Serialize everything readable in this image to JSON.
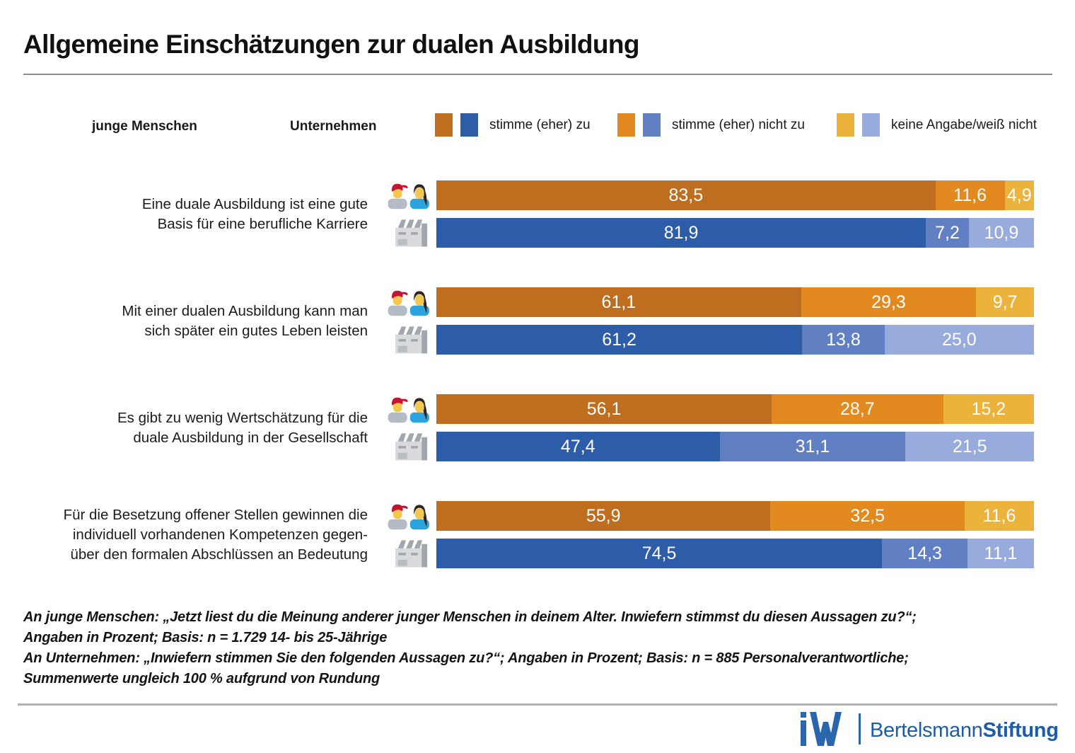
{
  "title": "Allgemeine Einschätzungen zur dualen Ausbildung",
  "legend": {
    "groups": [
      {
        "label": "junge Menschen",
        "icon": "young-people-icon"
      },
      {
        "label": "Unternehmen",
        "icon": "factory-icon"
      }
    ],
    "categories": [
      {
        "label": "stimme (eher) zu"
      },
      {
        "label": "stimme (eher) nicht zu"
      },
      {
        "label": "keine Angabe/weiß nicht"
      }
    ]
  },
  "colors": {
    "young": [
      "#bf6d1e",
      "#e2891f",
      "#ecb33c"
    ],
    "company": [
      "#2d5ca9",
      "#6180c4",
      "#97abdc"
    ],
    "title_rule": "#8f8f8f",
    "bottom_rule": "#b1b1b1",
    "logo_blue": "#2a66ae",
    "brand_blue": "#1d5ca8"
  },
  "chart_data": {
    "type": "bar",
    "orientation": "horizontal-stacked",
    "unit": "percent",
    "value_range": [
      0,
      100
    ],
    "categories": [
      "stimme (eher) zu",
      "stimme (eher) nicht zu",
      "keine Angabe/weiß nicht"
    ],
    "groups": [
      {
        "label": "Eine duale Ausbildung ist eine gute Basis für eine berufliche Karriere",
        "label_lines": [
          "Eine duale Ausbildung ist eine gute",
          "Basis für eine berufliche Karriere"
        ],
        "series": [
          {
            "name": "junge Menschen",
            "values": [
              83.5,
              11.6,
              4.9
            ]
          },
          {
            "name": "Unternehmen",
            "values": [
              81.9,
              7.2,
              10.9
            ]
          }
        ]
      },
      {
        "label": "Mit einer dualen Ausbildung kann man sich später ein gutes Leben leisten",
        "label_lines": [
          "Mit einer dualen Ausbildung kann man",
          "sich später ein gutes Leben leisten"
        ],
        "series": [
          {
            "name": "junge Menschen",
            "values": [
              61.1,
              29.3,
              9.7
            ]
          },
          {
            "name": "Unternehmen",
            "values": [
              61.2,
              13.8,
              25.0
            ]
          }
        ]
      },
      {
        "label": "Es gibt zu wenig Wertschätzung für die duale Ausbildung in der Gesellschaft",
        "label_lines": [
          "Es gibt zu wenig Wertschätzung für die",
          "duale Ausbildung in der Gesellschaft"
        ],
        "series": [
          {
            "name": "junge Menschen",
            "values": [
              56.1,
              28.7,
              15.2
            ]
          },
          {
            "name": "Unternehmen",
            "values": [
              47.4,
              31.1,
              21.5
            ]
          }
        ]
      },
      {
        "label": "Für die Besetzung offener Stellen gewinnen die individuell vorhandenen Kompetenzen gegenüber den formalen Abschlüssen an Bedeutung",
        "label_lines": [
          "Für die Besetzung offener Stellen gewinnen die",
          "individuell vorhandenen Kompetenzen gegen-",
          "über den formalen Abschlüssen an Bedeutung"
        ],
        "series": [
          {
            "name": "junge Menschen",
            "values": [
              55.9,
              32.5,
              11.6
            ]
          },
          {
            "name": "Unternehmen",
            "values": [
              74.5,
              14.3,
              11.1
            ]
          }
        ]
      }
    ]
  },
  "footnote": {
    "lines": [
      "An junge Menschen: „Jetzt liest du die Meinung anderer junger Menschen in deinem Alter. Inwiefern stimmst du diesen Aussagen zu?“;",
      "Angaben in Prozent; Basis: n = 1.729 14- bis 25-Jährige",
      "An Unternehmen: „Inwiefern stimmen Sie den folgenden Aussagen zu?“; Angaben in Prozent; Basis: n = 885 Personalverantwortliche;",
      "Summenwerte ungleich 100 % aufgrund von Rundung"
    ]
  },
  "footer": {
    "brand_regular": "Bertelsmann",
    "brand_bold": "Stiftung"
  }
}
